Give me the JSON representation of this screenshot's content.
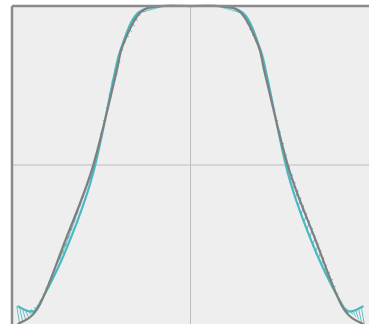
{
  "chart_data": {
    "type": "line",
    "title": "",
    "xlabel": "",
    "ylabel": "",
    "xlim": [
      -1,
      1
    ],
    "ylim": [
      -1,
      1
    ],
    "grid": true,
    "legend": "none",
    "colors": {
      "background": "#eeeeee",
      "frame": "#8a8a8a",
      "grid": "#bcbcbc",
      "reference_curve": "#7f7f7f",
      "approx_curve": "#4bb8c0",
      "error_hatch": "#4bb8c0"
    },
    "series": [
      {
        "role": "reference",
        "x": [
          -0.965,
          -0.85,
          -0.7,
          -0.55,
          -0.42,
          -0.38,
          -0.28,
          -0.15,
          0.0,
          0.15,
          0.28,
          0.38,
          0.42,
          0.55,
          0.7,
          0.85,
          0.965
        ],
        "y": [
          -1.0,
          -0.89,
          -0.47,
          -0.02,
          0.56,
          0.75,
          0.96,
          1.0,
          1.0,
          1.0,
          0.96,
          0.75,
          0.56,
          -0.02,
          -0.47,
          -0.89,
          -1.0
        ]
      },
      {
        "role": "approximation",
        "x": [
          -0.965,
          -0.9,
          -0.85,
          -0.7,
          -0.55,
          -0.43,
          -0.39,
          -0.3,
          -0.15,
          0.0,
          0.15,
          0.3,
          0.39,
          0.43,
          0.55,
          0.7,
          0.85,
          0.9,
          0.965
        ],
        "y": [
          -0.89,
          -0.92,
          -0.88,
          -0.54,
          -0.07,
          0.55,
          0.73,
          0.95,
          1.0,
          1.0,
          1.0,
          0.95,
          0.73,
          0.55,
          -0.07,
          -0.54,
          -0.88,
          -0.92,
          -0.89
        ]
      }
    ]
  }
}
